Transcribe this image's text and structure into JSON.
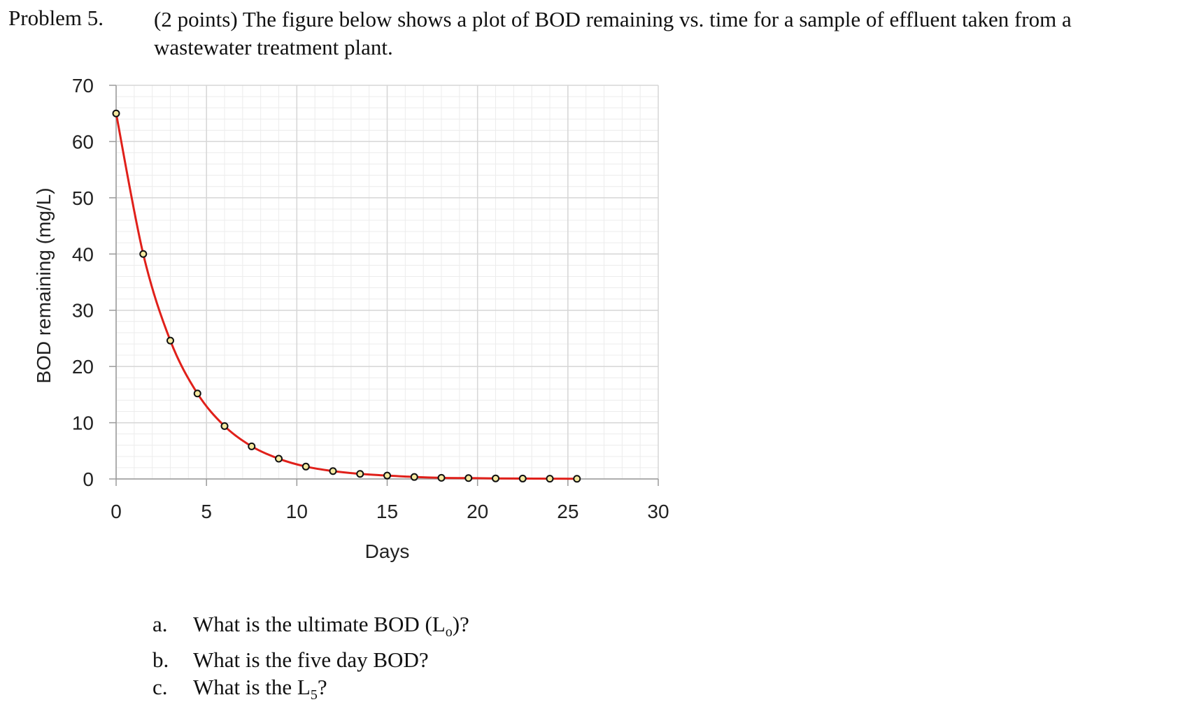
{
  "problem": {
    "label": "Problem 5.",
    "text_line1": "(2 points) The figure below shows a plot of BOD remaining vs. time for a sample of effluent taken from a",
    "text_line2": "wastewater treatment plant."
  },
  "questions": [
    {
      "letter": "a.",
      "pre": "What is the ultimate BOD (L",
      "sub": "o",
      "post": ")?"
    },
    {
      "letter": "b.",
      "pre": "What is the five day BOD?",
      "sub": "",
      "post": ""
    },
    {
      "letter": "c.",
      "pre": "What is the L",
      "sub": "5",
      "post": "?"
    }
  ],
  "chart_data": {
    "type": "scatter",
    "xlabel": "Days",
    "ylabel": "BOD remaining (mg/L)",
    "xlim": [
      0,
      30
    ],
    "ylim": [
      0,
      70
    ],
    "x_ticks": [
      0,
      5,
      10,
      15,
      20,
      25,
      30
    ],
    "y_ticks": [
      0,
      10,
      20,
      30,
      40,
      50,
      60,
      70
    ],
    "grid": true,
    "line_color": "#e0201a",
    "marker_fill": "#f5e9a0",
    "series": [
      {
        "x": [
          0,
          1.5,
          3,
          4.5,
          6,
          7.5,
          9,
          10.5,
          12,
          13.5,
          15,
          16.5,
          18,
          19.5,
          21,
          22.5,
          24,
          25.5
        ],
        "y": [
          65,
          40,
          24.6,
          15.2,
          9.4,
          5.8,
          3.6,
          2.2,
          1.4,
          0.9,
          0.6,
          0.35,
          0.2,
          0.15,
          0.1,
          0.07,
          0.05,
          0.03
        ]
      }
    ]
  }
}
